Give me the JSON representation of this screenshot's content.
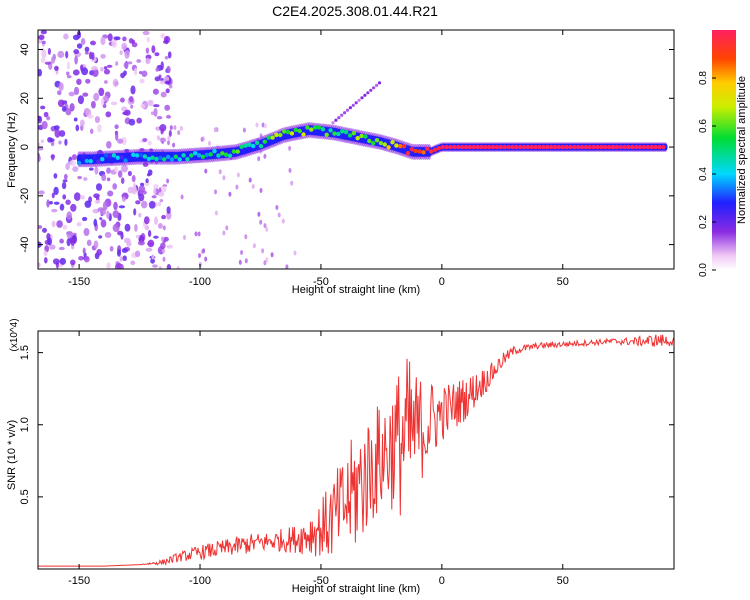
{
  "title": "C2E4.2025.308.01.44.R21",
  "colors": {
    "snr_line": "#ee3333",
    "axis": "#000000",
    "background": "#ffffff"
  },
  "chart_data": [
    {
      "type": "heatmap",
      "xlabel": "Height of straight line (km)",
      "ylabel": "Frequency (Hz)",
      "xlim": [
        -167,
        96
      ],
      "ylim": [
        -50,
        48
      ],
      "xticks": [
        -150,
        -100,
        -50,
        0,
        50
      ],
      "xtick_labels": [
        "-150",
        "-100",
        "-50",
        "0",
        "50"
      ],
      "yticks": [
        -40,
        -20,
        0,
        20,
        40
      ],
      "ytick_labels": [
        "-40",
        "-20",
        "0",
        "20",
        "40"
      ],
      "colorbar": {
        "label": "Normalized spectral amplitude",
        "range": [
          0,
          1
        ],
        "ticks": [
          0.0,
          0.2,
          0.4,
          0.6,
          0.8
        ],
        "tick_labels": [
          "0.0",
          "0.2",
          "0.4",
          "0.6",
          "0.8"
        ]
      },
      "ridge": {
        "description_points_height_km": [
          -145,
          -125,
          -110,
          -95,
          -85,
          -75,
          -65,
          -55,
          -45,
          -35,
          -25,
          -18,
          -12,
          -5,
          0,
          20,
          50,
          93
        ],
        "frequency_hz": [
          -5,
          -4,
          -4,
          -3,
          -2,
          1,
          5,
          7,
          6,
          4,
          2,
          0,
          -2,
          -2,
          0,
          0,
          0,
          0
        ],
        "amplitude": [
          0.3,
          0.35,
          0.4,
          0.45,
          0.5,
          0.55,
          0.6,
          0.6,
          0.55,
          0.6,
          0.7,
          0.8,
          0.9,
          0.95,
          1.0,
          1.0,
          1.0,
          1.0
        ]
      },
      "noise_region_km": [
        -167,
        -120
      ]
    },
    {
      "type": "line",
      "xlabel": "Height of straight line (km)",
      "ylabel": "SNR (10 * v/v)",
      "y_multiplier": "(x10^4)",
      "xlim": [
        -167,
        96
      ],
      "ylim": [
        0,
        1.65
      ],
      "xticks": [
        -150,
        -100,
        -50,
        0,
        50
      ],
      "xtick_labels": [
        "-150",
        "-100",
        "-50",
        "0",
        "50"
      ],
      "yticks": [
        0.5,
        1.0,
        1.5
      ],
      "ytick_labels": [
        "0.5",
        "1.0",
        "1.5"
      ],
      "series": [
        {
          "name": "SNR",
          "x": [
            -167,
            -140,
            -125,
            -115,
            -110,
            -100,
            -90,
            -80,
            -70,
            -60,
            -50,
            -45,
            -40,
            -35,
            -30,
            -25,
            -20,
            -15,
            -10,
            -5,
            0,
            10,
            20,
            25,
            30,
            40,
            50,
            60,
            70,
            80,
            90,
            96
          ],
          "y": [
            0.02,
            0.02,
            0.03,
            0.05,
            0.08,
            0.12,
            0.15,
            0.18,
            0.2,
            0.22,
            0.3,
            0.38,
            0.48,
            0.6,
            0.72,
            0.82,
            0.9,
            0.97,
            1.0,
            1.05,
            1.1,
            1.2,
            1.35,
            1.45,
            1.52,
            1.55,
            1.56,
            1.57,
            1.58,
            1.58,
            1.59,
            1.58
          ],
          "noise": [
            0.0,
            0.0,
            0.0,
            0.02,
            0.03,
            0.05,
            0.06,
            0.07,
            0.07,
            0.1,
            0.2,
            0.3,
            0.35,
            0.45,
            0.4,
            0.4,
            0.45,
            0.6,
            0.4,
            0.3,
            0.2,
            0.15,
            0.08,
            0.05,
            0.03,
            0.02,
            0.02,
            0.02,
            0.02,
            0.03,
            0.05,
            0.03
          ]
        }
      ]
    }
  ]
}
